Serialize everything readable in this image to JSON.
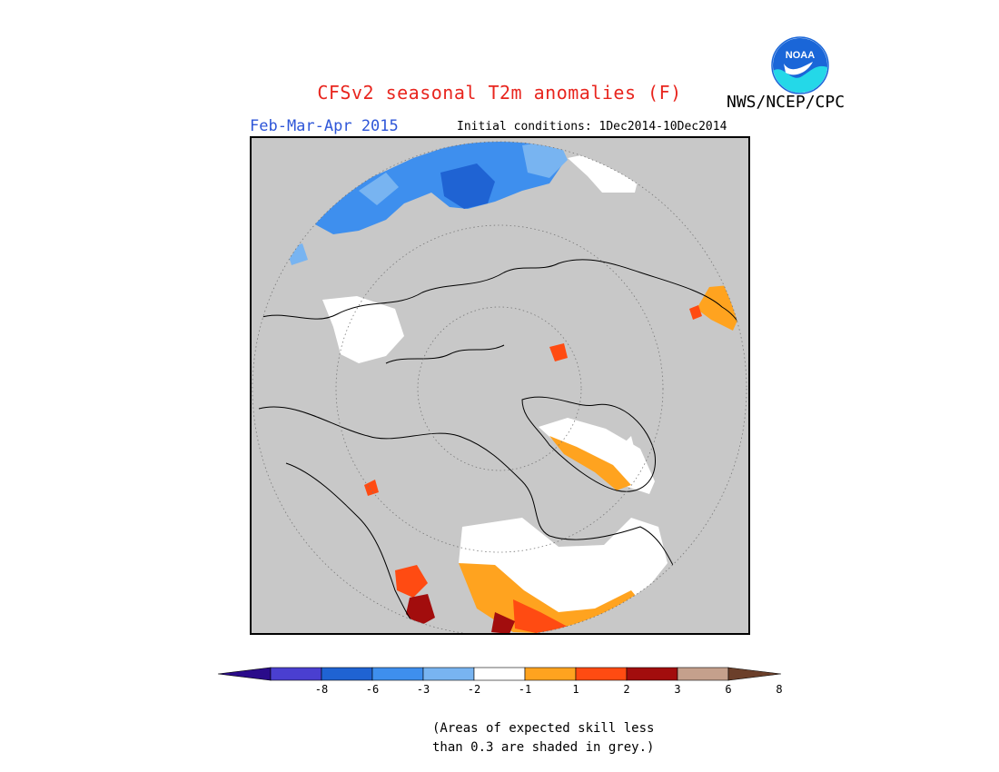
{
  "header": {
    "title": "CFSv2 seasonal T2m anomalies (F)",
    "agency": "NWS/NCEP/CPC",
    "season": "Feb-Mar-Apr 2015",
    "initial_conditions": "Initial conditions: 1Dec2014-10Dec2014",
    "logo_text": "NOAA"
  },
  "colors": {
    "title": "#e8251e",
    "season": "#2e56d8",
    "grey_mask": "#c8c8c8",
    "logo_blue": "#1a66d8",
    "logo_cyan": "#24d8e8"
  },
  "legend": {
    "bins": [
      {
        "color": "#2a0b8a"
      },
      {
        "color": "#4a3fd0"
      },
      {
        "color": "#1f63d3"
      },
      {
        "color": "#3e8fee"
      },
      {
        "color": "#78b4f1"
      },
      {
        "color": "#ffffff"
      },
      {
        "color": "#ffa31f"
      },
      {
        "color": "#ff4b12"
      },
      {
        "color": "#a20d0d"
      },
      {
        "color": "#c5a08c"
      },
      {
        "color": "#6b3f2a"
      }
    ],
    "tick_labels": [
      "-8",
      "-6",
      "-3",
      "-2",
      "-1",
      "1",
      "2",
      "3",
      "6",
      "8"
    ]
  },
  "note": {
    "line1": "(Areas of expected skill less",
    "line2": "than 0.3 are shaded in grey.)"
  }
}
